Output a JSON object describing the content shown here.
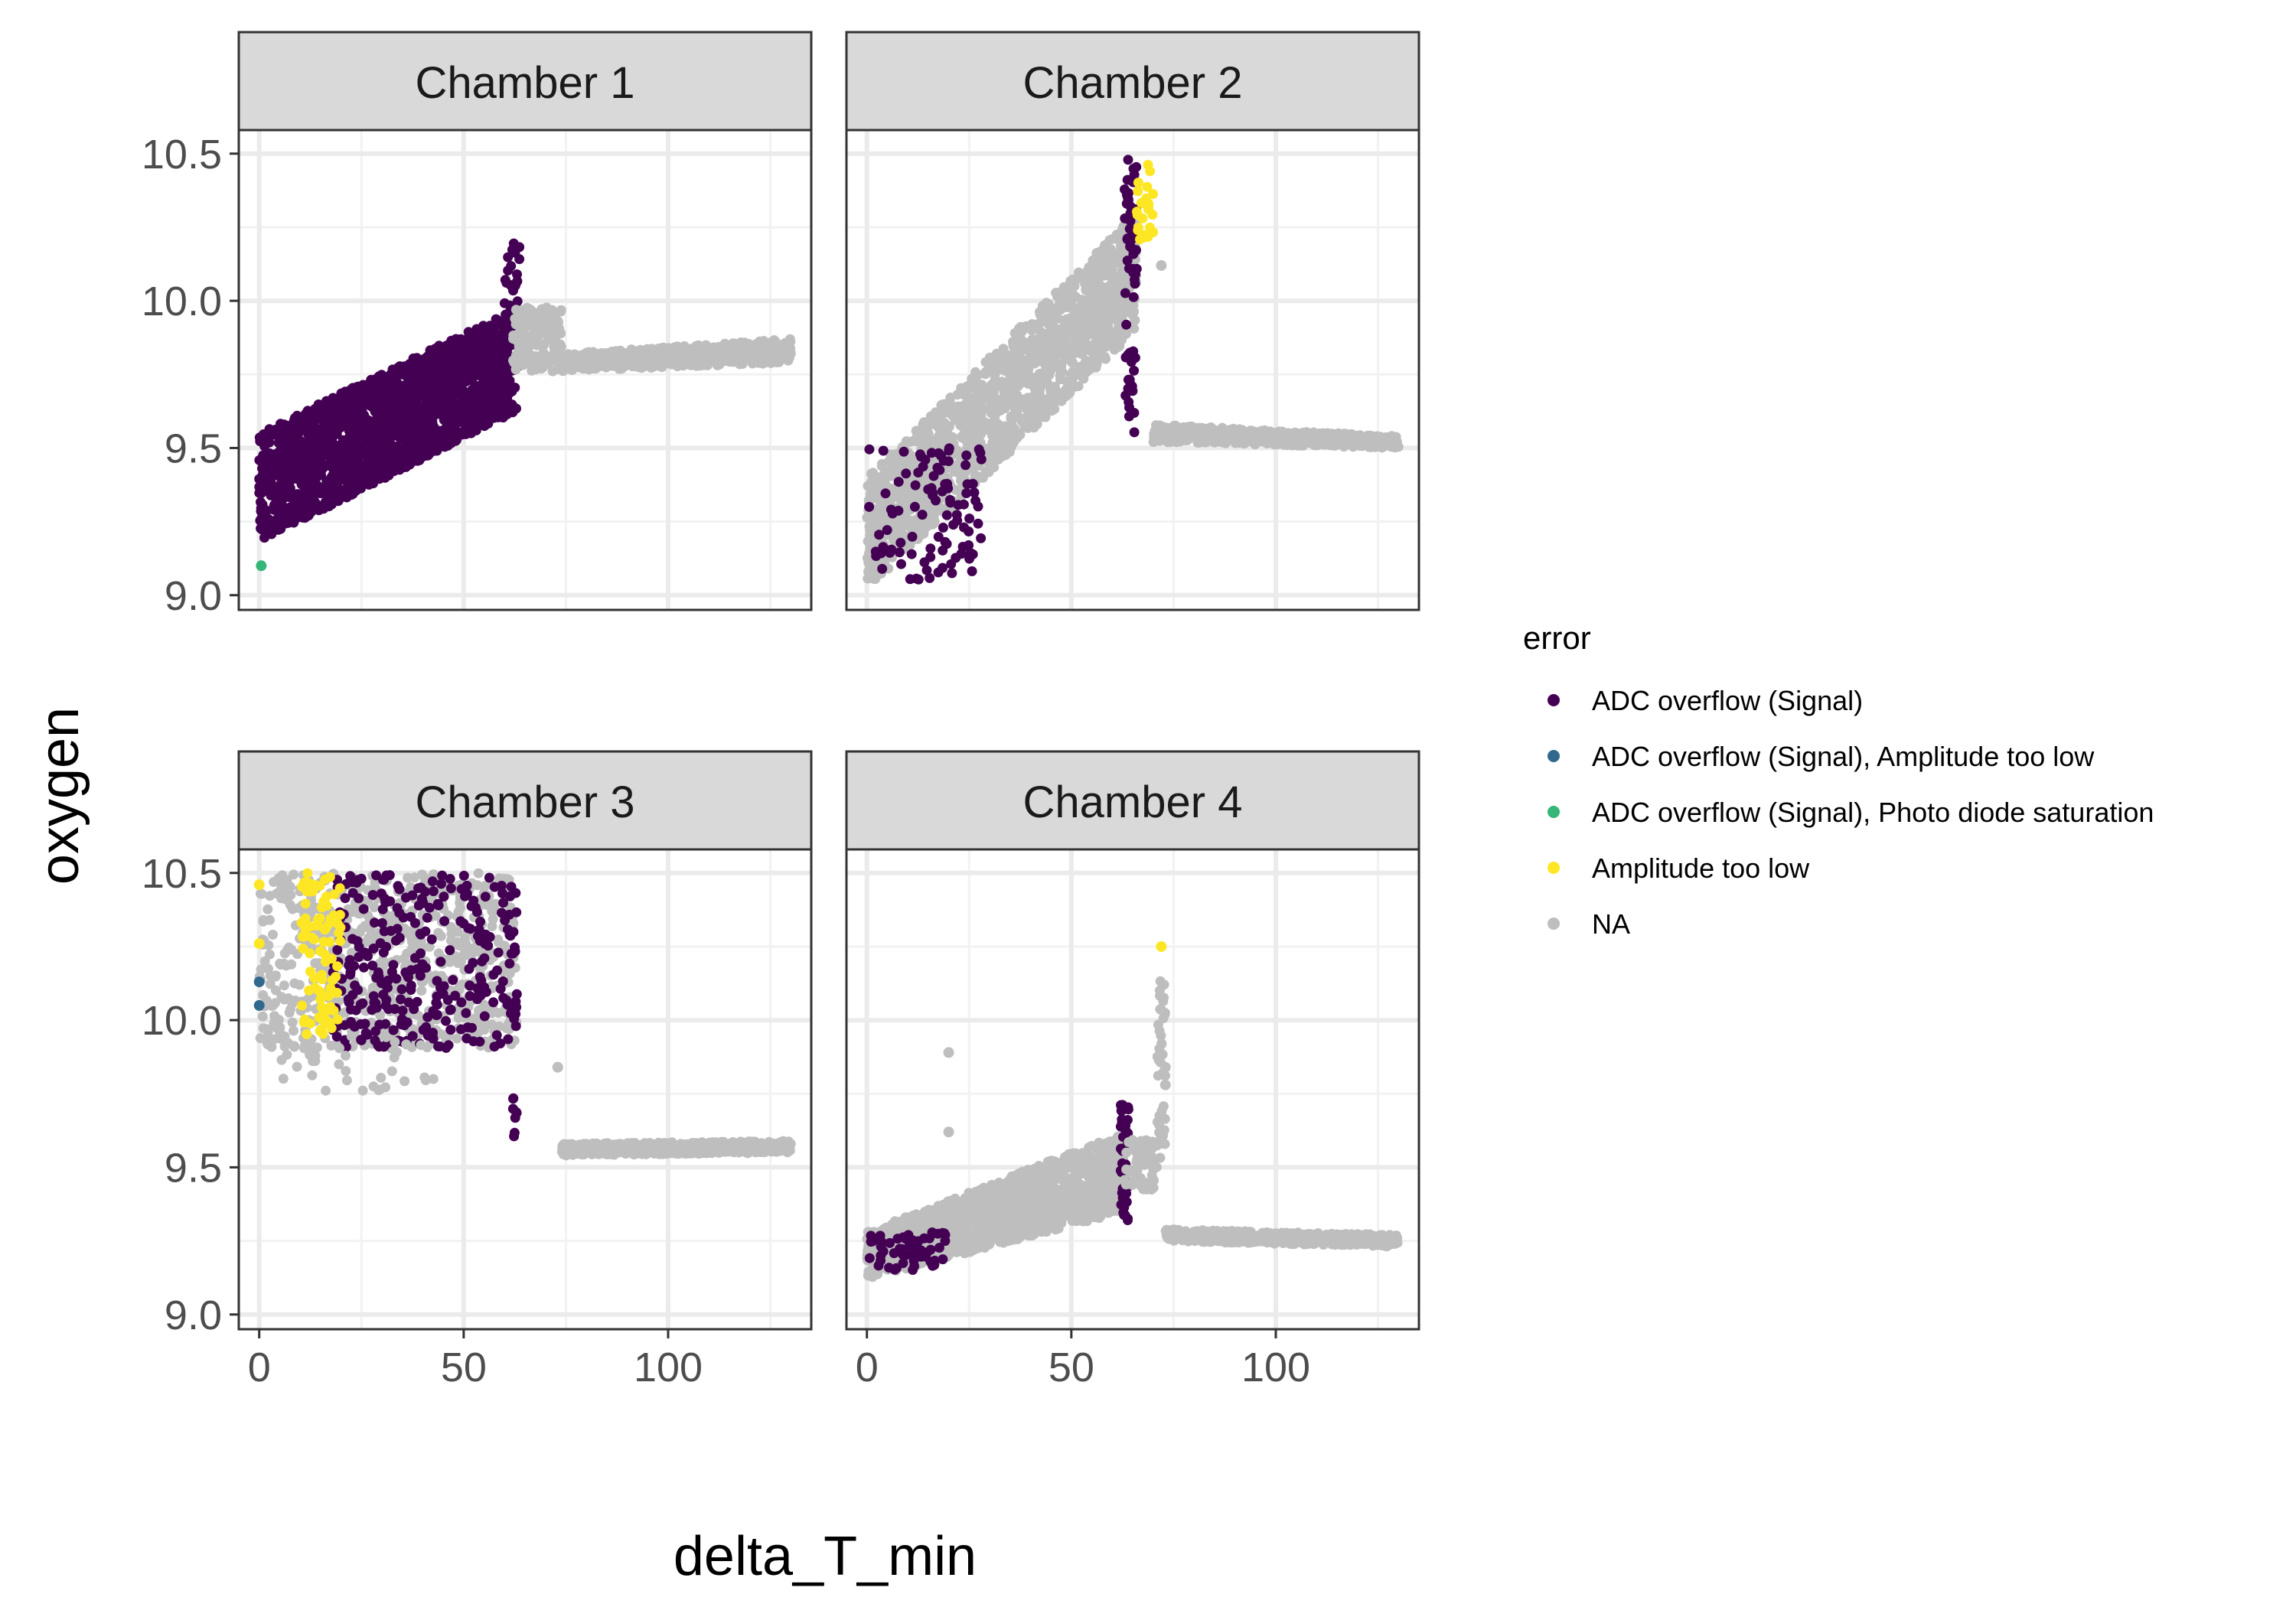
{
  "chart_data": {
    "type": "scatter",
    "x_label": "delta_T_min",
    "y_label": "oxygen",
    "x_ticks": [
      0,
      50,
      100
    ],
    "y_ticks": [
      "9.0",
      "9.5",
      "10.0",
      "10.5"
    ],
    "xlim": [
      -5,
      135
    ],
    "ylim": [
      8.95,
      10.58
    ],
    "legend": {
      "title": "error",
      "position": "right",
      "entries": [
        {
          "label": "ADC overflow (Signal)",
          "color": "#440154"
        },
        {
          "label": "ADC overflow (Signal), Amplitude too low",
          "color": "#31688E"
        },
        {
          "label": "ADC overflow (Signal), Photo diode saturation",
          "color": "#35B779"
        },
        {
          "label": "Amplitude too low",
          "color": "#FDE725"
        },
        {
          "label": "NA",
          "color": "#BEBEBE"
        }
      ]
    },
    "panels": [
      {
        "title": "Chamber 1",
        "clusters": [
          {
            "category": "ADC overflow (Signal)",
            "x": [
              0,
              62
            ],
            "y_start": [
              9.18,
              9.55
            ],
            "y_end": [
              9.62,
              9.97
            ],
            "n": 1800
          },
          {
            "category": "ADC overflow (Signal)",
            "x": [
              60,
              64
            ],
            "y": [
              9.6,
              10.22
            ],
            "n": 40
          },
          {
            "category": "NA",
            "x": [
              62,
              74
            ],
            "y": [
              9.76,
              9.98
            ],
            "n": 150
          },
          {
            "category": "NA",
            "x": [
              74,
              130
            ],
            "y_start": [
              9.76,
              9.82
            ],
            "y_end": [
              9.79,
              9.87
            ],
            "n": 600
          }
        ],
        "points": [
          {
            "x": 0.5,
            "y": 9.1,
            "category": "ADC overflow (Signal), Photo diode saturation"
          }
        ]
      },
      {
        "title": "Chamber 2",
        "clusters": [
          {
            "category": "NA",
            "x": [
              0,
              66
            ],
            "y_start": [
              9.02,
              9.4
            ],
            "y_end": [
              9.9,
              10.3
            ],
            "n": 1500
          },
          {
            "category": "ADC overflow (Signal)",
            "x": [
              0,
              28
            ],
            "y": [
              9.05,
              9.5
            ],
            "n": 100
          },
          {
            "category": "ADC overflow (Signal)",
            "x": [
              63,
              66
            ],
            "y": [
              9.55,
              10.48
            ],
            "n": 60
          },
          {
            "category": "Amplitude too low",
            "x": [
              66,
              70
            ],
            "y": [
              10.2,
              10.5
            ],
            "n": 25
          },
          {
            "category": "NA",
            "x": [
              70,
              130
            ],
            "y_start": [
              9.52,
              9.58
            ],
            "y_end": [
              9.5,
              9.54
            ],
            "n": 600
          }
        ],
        "points": [
          {
            "x": 72,
            "y": 10.12,
            "category": "NA"
          }
        ]
      },
      {
        "title": "Chamber 3",
        "clusters": [
          {
            "category": "NA",
            "x": [
              0,
              63
            ],
            "y": [
              9.9,
              10.5
            ],
            "n": 700
          },
          {
            "category": "ADC overflow (Signal)",
            "x": [
              18,
              63
            ],
            "y": [
              9.9,
              10.5
            ],
            "n": 300
          },
          {
            "category": "Amplitude too low",
            "x": [
              10,
              20
            ],
            "y": [
              9.95,
              10.5
            ],
            "n": 90
          },
          {
            "category": "NA",
            "x": [
              5,
              45
            ],
            "y": [
              9.75,
              9.95
            ],
            "n": 40
          },
          {
            "category": "ADC overflow (Signal)",
            "x": [
              62,
              63
            ],
            "y": [
              9.6,
              9.75
            ],
            "n": 8
          },
          {
            "category": "NA",
            "x": [
              74,
              130
            ],
            "y_start": [
              9.54,
              9.58
            ],
            "y_end": [
              9.55,
              9.59
            ],
            "n": 600
          }
        ],
        "points": [
          {
            "x": 0,
            "y": 10.46,
            "category": "Amplitude too low"
          },
          {
            "x": 0,
            "y": 10.26,
            "category": "Amplitude too low"
          },
          {
            "x": 0,
            "y": 10.13,
            "category": "ADC overflow (Signal), Amplitude too low"
          },
          {
            "x": 0,
            "y": 10.05,
            "category": "ADC overflow (Signal), Amplitude too low"
          },
          {
            "x": 73,
            "y": 9.84,
            "category": "NA"
          }
        ]
      },
      {
        "title": "Chamber 4",
        "clusters": [
          {
            "category": "NA",
            "x": [
              0,
              63
            ],
            "y_start": [
              9.12,
              9.28
            ],
            "y_end": [
              9.35,
              9.62
            ],
            "n": 1500
          },
          {
            "category": "ADC overflow (Signal)",
            "x": [
              0,
              20
            ],
            "y": [
              9.15,
              9.28
            ],
            "n": 60
          },
          {
            "category": "ADC overflow (Signal)",
            "x": [
              62,
              64
            ],
            "y": [
              9.32,
              9.72
            ],
            "n": 50
          },
          {
            "category": "NA",
            "x": [
              63,
              72
            ],
            "y": [
              9.42,
              9.6
            ],
            "n": 60
          },
          {
            "category": "NA",
            "x": [
              71,
              73
            ],
            "y": [
              9.55,
              10.14
            ],
            "n": 40
          },
          {
            "category": "NA",
            "x": [
              73,
              130
            ],
            "y_start": [
              9.25,
              9.29
            ],
            "y_end": [
              9.23,
              9.27
            ],
            "n": 600
          }
        ],
        "points": [
          {
            "x": 72,
            "y": 10.25,
            "category": "Amplitude too low"
          },
          {
            "x": 20,
            "y": 9.89,
            "category": "NA"
          },
          {
            "x": 20,
            "y": 9.62,
            "category": "NA"
          },
          {
            "x": 73,
            "y": 9.78,
            "category": "NA"
          },
          {
            "x": 73,
            "y": 9.84,
            "category": "NA"
          }
        ]
      }
    ]
  }
}
